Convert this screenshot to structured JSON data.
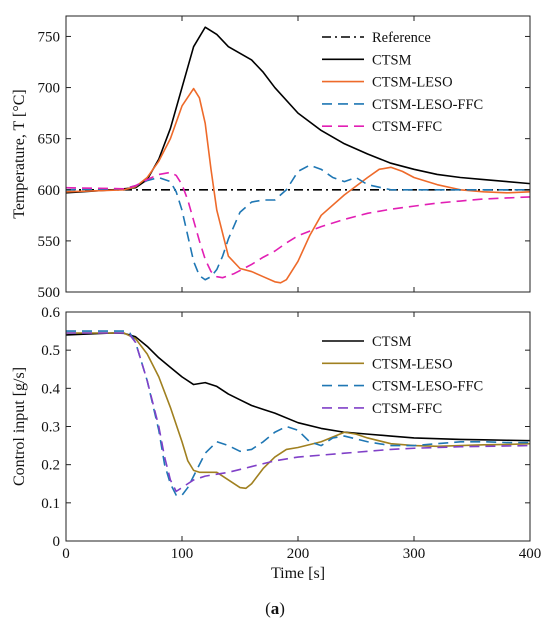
{
  "caption": {
    "open": "(",
    "letter": "a",
    "close": ")"
  },
  "chart_data": [
    {
      "type": "line",
      "title": "",
      "xlabel": "",
      "ylabel": "Temperature, T [°C]",
      "xlim": [
        0,
        400
      ],
      "ylim": [
        500,
        770
      ],
      "xticks": [
        0,
        100,
        200,
        300,
        400
      ],
      "yticks": [
        500,
        550,
        600,
        650,
        700,
        750
      ],
      "show_xtick_labels": false,
      "grid": false,
      "legend_position": "top-right",
      "series": [
        {
          "name": "Reference",
          "color": "#000000",
          "dash": "dashdot",
          "x": [
            0,
            400
          ],
          "y": [
            600,
            600
          ]
        },
        {
          "name": "CTSM",
          "color": "#000000",
          "dash": "solid",
          "x": [
            0,
            40,
            60,
            70,
            80,
            90,
            100,
            110,
            120,
            130,
            140,
            160,
            170,
            180,
            200,
            220,
            240,
            260,
            280,
            300,
            320,
            340,
            360,
            380,
            400
          ],
          "y": [
            597,
            600,
            602,
            610,
            630,
            660,
            700,
            740,
            759,
            752,
            740,
            727,
            715,
            700,
            675,
            658,
            645,
            635,
            626,
            620,
            615,
            612,
            610,
            608,
            606
          ]
        },
        {
          "name": "CTSM-LESO",
          "color": "#ee6a2a",
          "dash": "solid",
          "x": [
            0,
            50,
            60,
            70,
            80,
            90,
            100,
            110,
            115,
            120,
            125,
            130,
            140,
            150,
            160,
            170,
            180,
            185,
            190,
            200,
            210,
            220,
            240,
            260,
            270,
            280,
            290,
            300,
            320,
            340,
            360,
            380,
            400
          ],
          "y": [
            598,
            600,
            603,
            612,
            628,
            650,
            682,
            699,
            690,
            665,
            620,
            580,
            535,
            523,
            520,
            515,
            510,
            509,
            512,
            530,
            555,
            575,
            595,
            612,
            620,
            622,
            618,
            612,
            605,
            600,
            598,
            597,
            598
          ]
        },
        {
          "name": "CTSM-LESO-FFC",
          "color": "#1f77b4",
          "dash": "dashed",
          "x": [
            0,
            50,
            60,
            70,
            80,
            90,
            95,
            100,
            105,
            110,
            115,
            120,
            125,
            130,
            135,
            140,
            145,
            150,
            160,
            170,
            180,
            190,
            200,
            210,
            220,
            230,
            240,
            250,
            260,
            280,
            300,
            320,
            340,
            360,
            380,
            400
          ],
          "y": [
            600,
            601,
            604,
            609,
            612,
            608,
            598,
            580,
            555,
            530,
            516,
            512,
            515,
            522,
            535,
            552,
            565,
            578,
            588,
            590,
            590,
            600,
            618,
            624,
            620,
            612,
            608,
            612,
            605,
            600,
            600,
            600,
            600,
            600,
            600,
            600
          ]
        },
        {
          "name": "CTSM-FFC",
          "color": "#e21fb4",
          "dash": "dashed",
          "x": [
            0,
            50,
            60,
            70,
            80,
            90,
            95,
            100,
            105,
            110,
            115,
            120,
            125,
            130,
            135,
            140,
            145,
            150,
            160,
            170,
            180,
            190,
            200,
            220,
            240,
            260,
            280,
            300,
            320,
            340,
            360,
            380,
            400
          ],
          "y": [
            602,
            601,
            604,
            610,
            615,
            617,
            614,
            605,
            590,
            570,
            550,
            532,
            520,
            515,
            514,
            516,
            518,
            521,
            527,
            534,
            540,
            548,
            555,
            564,
            571,
            577,
            581,
            584,
            587,
            589,
            591,
            592,
            593
          ]
        }
      ]
    },
    {
      "type": "line",
      "title": "",
      "xlabel": "Time [s]",
      "ylabel": "Control input [g/s]",
      "xlim": [
        0,
        400
      ],
      "ylim": [
        0,
        0.6
      ],
      "xticks": [
        0,
        100,
        200,
        300,
        400
      ],
      "yticks": [
        0,
        0.1,
        0.2,
        0.3,
        0.4,
        0.5,
        0.6
      ],
      "show_xtick_labels": true,
      "grid": false,
      "legend_position": "right",
      "series": [
        {
          "name": "CTSM",
          "color": "#000000",
          "dash": "solid",
          "x": [
            0,
            40,
            50,
            60,
            70,
            80,
            90,
            100,
            110,
            120,
            130,
            140,
            150,
            160,
            170,
            180,
            200,
            220,
            240,
            260,
            280,
            300,
            320,
            340,
            360,
            380,
            400
          ],
          "y": [
            0.54,
            0.545,
            0.544,
            0.535,
            0.51,
            0.48,
            0.455,
            0.43,
            0.41,
            0.415,
            0.405,
            0.385,
            0.37,
            0.355,
            0.345,
            0.335,
            0.31,
            0.295,
            0.285,
            0.28,
            0.275,
            0.27,
            0.268,
            0.266,
            0.265,
            0.264,
            0.263
          ]
        },
        {
          "name": "CTSM-LESO",
          "color": "#a08020",
          "dash": "solid",
          "x": [
            0,
            50,
            60,
            70,
            80,
            90,
            100,
            105,
            110,
            115,
            120,
            130,
            140,
            150,
            155,
            160,
            170,
            180,
            190,
            200,
            220,
            240,
            250,
            260,
            280,
            300,
            320,
            340,
            360,
            380,
            400
          ],
          "y": [
            0.545,
            0.545,
            0.53,
            0.49,
            0.43,
            0.35,
            0.26,
            0.21,
            0.185,
            0.18,
            0.18,
            0.18,
            0.16,
            0.14,
            0.138,
            0.15,
            0.19,
            0.22,
            0.24,
            0.245,
            0.26,
            0.285,
            0.28,
            0.27,
            0.255,
            0.25,
            0.248,
            0.25,
            0.252,
            0.253,
            0.255
          ]
        },
        {
          "name": "CTSM-LESO-FFC",
          "color": "#1f77b4",
          "dash": "dashed",
          "x": [
            0,
            50,
            55,
            60,
            70,
            80,
            85,
            90,
            95,
            100,
            105,
            110,
            115,
            120,
            130,
            140,
            150,
            160,
            170,
            180,
            190,
            200,
            210,
            220,
            230,
            240,
            260,
            280,
            300,
            320,
            340,
            360,
            380,
            400
          ],
          "y": [
            0.55,
            0.55,
            0.545,
            0.52,
            0.42,
            0.29,
            0.2,
            0.15,
            0.12,
            0.12,
            0.14,
            0.17,
            0.2,
            0.23,
            0.26,
            0.25,
            0.235,
            0.24,
            0.26,
            0.285,
            0.3,
            0.29,
            0.26,
            0.25,
            0.27,
            0.275,
            0.26,
            0.25,
            0.25,
            0.255,
            0.26,
            0.26,
            0.258,
            0.258
          ]
        },
        {
          "name": "CTSM-FFC",
          "color": "#8040c8",
          "dash": "dashed",
          "x": [
            0,
            50,
            55,
            60,
            70,
            80,
            85,
            90,
            95,
            100,
            105,
            110,
            120,
            130,
            140,
            160,
            180,
            200,
            220,
            240,
            260,
            280,
            300,
            320,
            340,
            360,
            380,
            400
          ],
          "y": [
            0.545,
            0.545,
            0.54,
            0.52,
            0.42,
            0.3,
            0.22,
            0.16,
            0.13,
            0.14,
            0.15,
            0.16,
            0.17,
            0.175,
            0.18,
            0.195,
            0.21,
            0.22,
            0.225,
            0.23,
            0.235,
            0.24,
            0.243,
            0.245,
            0.247,
            0.248,
            0.249,
            0.25
          ]
        }
      ]
    }
  ]
}
